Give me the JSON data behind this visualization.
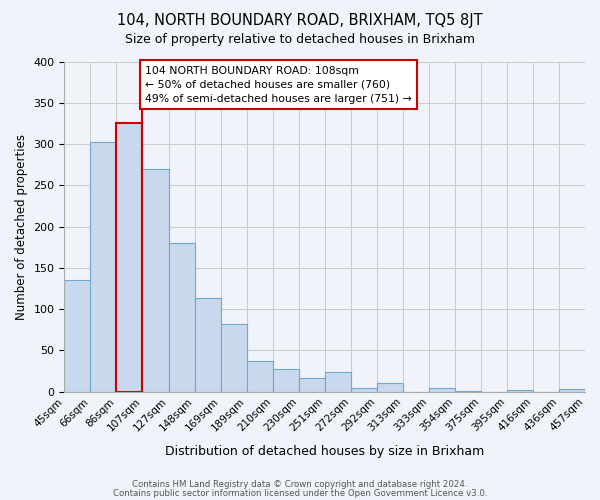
{
  "title": "104, NORTH BOUNDARY ROAD, BRIXHAM, TQ5 8JT",
  "subtitle": "Size of property relative to detached houses in Brixham",
  "xlabel": "Distribution of detached houses by size in Brixham",
  "ylabel": "Number of detached properties",
  "footer_lines": [
    "Contains HM Land Registry data © Crown copyright and database right 2024.",
    "Contains public sector information licensed under the Open Government Licence v3.0."
  ],
  "bin_labels": [
    "45sqm",
    "66sqm",
    "86sqm",
    "107sqm",
    "127sqm",
    "148sqm",
    "169sqm",
    "189sqm",
    "210sqm",
    "230sqm",
    "251sqm",
    "272sqm",
    "292sqm",
    "313sqm",
    "333sqm",
    "354sqm",
    "375sqm",
    "395sqm",
    "416sqm",
    "436sqm",
    "457sqm"
  ],
  "bar_values": [
    135,
    303,
    325,
    270,
    180,
    113,
    82,
    37,
    27,
    17,
    24,
    5,
    10,
    0,
    5,
    1,
    0,
    2,
    0,
    3
  ],
  "bar_color": "#c8d9ed",
  "bar_edge_color": "#6fa8d0",
  "highlight_bar_index": 2,
  "highlight_edge_color": "#cc0000",
  "vline_x_index": 3,
  "vline_color": "#cc0000",
  "annotation_text": "104 NORTH BOUNDARY ROAD: 108sqm\n← 50% of detached houses are smaller (760)\n49% of semi-detached houses are larger (751) →",
  "annotation_box_edge": "#cc0000",
  "ylim": [
    0,
    400
  ],
  "yticks": [
    0,
    50,
    100,
    150,
    200,
    250,
    300,
    350,
    400
  ],
  "grid_color": "#cccccc",
  "background_color": "#f0f4fa"
}
